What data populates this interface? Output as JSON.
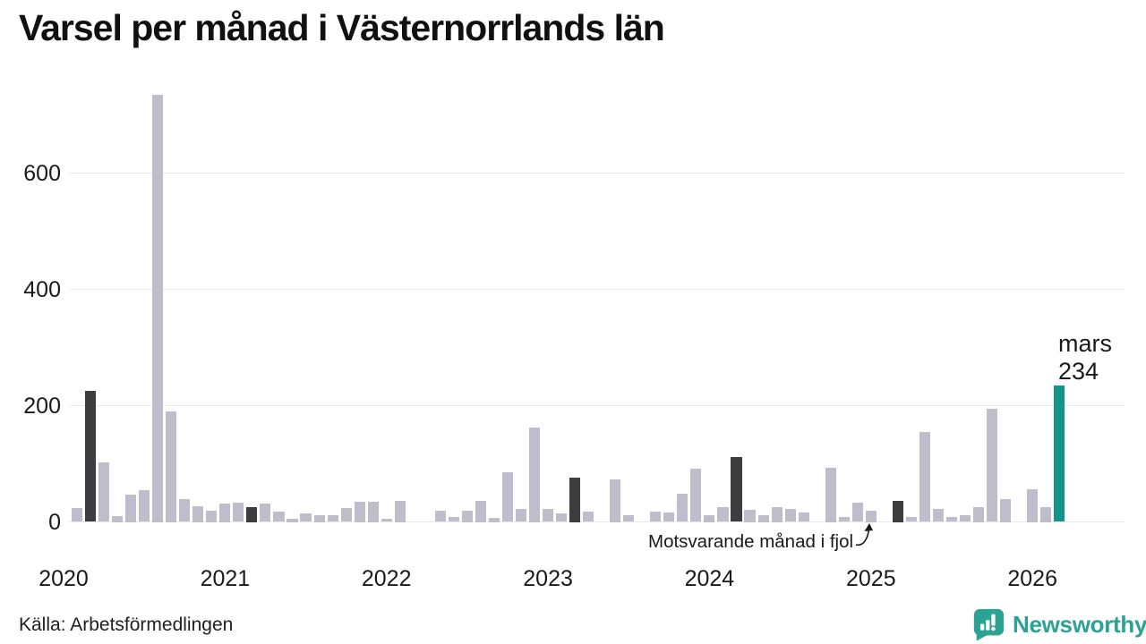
{
  "header": {
    "title": "Varsel per månad i Västernorrlands län"
  },
  "annotation": {
    "label": "Motsvarande månad i fjol",
    "points_to": "2025-03"
  },
  "highlight": {
    "month_label": "mars",
    "value_label": "234"
  },
  "footer": {
    "source": "Källa: Arbetsförmedlingen",
    "brand": "Newsworthy"
  },
  "colors": {
    "bar_default": "#bfbccb",
    "bar_dark": "#3d3c3f",
    "bar_accent": "#14948a",
    "grid": "#e7e7ee",
    "text": "#1a1a1a",
    "brand_teal": "#2ba293"
  },
  "chart_data": {
    "type": "bar",
    "title": "Varsel per månad i Västernorrlands län",
    "xlabel": "",
    "ylabel": "",
    "x_tick_labels": [
      "2020",
      "2021",
      "2022",
      "2023",
      "2024",
      "2025",
      "2026"
    ],
    "y_ticks": [
      0,
      200,
      400,
      600
    ],
    "ylim": [
      0,
      740
    ],
    "grid": "horizontal",
    "legend": "none",
    "highlighted_last_point": {
      "month": "2026-03",
      "label": "mars",
      "value": 234
    },
    "months": [
      {
        "m": "2020-01",
        "v": 0
      },
      {
        "m": "2020-02",
        "v": 24
      },
      {
        "m": "2020-03",
        "v": 226,
        "k": "dark"
      },
      {
        "m": "2020-04",
        "v": 102
      },
      {
        "m": "2020-05",
        "v": 10
      },
      {
        "m": "2020-06",
        "v": 47
      },
      {
        "m": "2020-07",
        "v": 54
      },
      {
        "m": "2020-08",
        "v": 735
      },
      {
        "m": "2020-09",
        "v": 190
      },
      {
        "m": "2020-10",
        "v": 39
      },
      {
        "m": "2020-11",
        "v": 27
      },
      {
        "m": "2020-12",
        "v": 20
      },
      {
        "m": "2021-01",
        "v": 31
      },
      {
        "m": "2021-02",
        "v": 33
      },
      {
        "m": "2021-03",
        "v": 25,
        "k": "dark"
      },
      {
        "m": "2021-04",
        "v": 32
      },
      {
        "m": "2021-05",
        "v": 18
      },
      {
        "m": "2021-06",
        "v": 5
      },
      {
        "m": "2021-07",
        "v": 14
      },
      {
        "m": "2021-08",
        "v": 11
      },
      {
        "m": "2021-09",
        "v": 12
      },
      {
        "m": "2021-10",
        "v": 24
      },
      {
        "m": "2021-11",
        "v": 35
      },
      {
        "m": "2021-12",
        "v": 35
      },
      {
        "m": "2022-01",
        "v": 6
      },
      {
        "m": "2022-02",
        "v": 37
      },
      {
        "m": "2022-03",
        "v": 0,
        "k": "dark"
      },
      {
        "m": "2022-04",
        "v": 0
      },
      {
        "m": "2022-05",
        "v": 19
      },
      {
        "m": "2022-06",
        "v": 9
      },
      {
        "m": "2022-07",
        "v": 20
      },
      {
        "m": "2022-08",
        "v": 37
      },
      {
        "m": "2022-09",
        "v": 7
      },
      {
        "m": "2022-10",
        "v": 86
      },
      {
        "m": "2022-11",
        "v": 22
      },
      {
        "m": "2022-12",
        "v": 163
      },
      {
        "m": "2023-01",
        "v": 22
      },
      {
        "m": "2023-02",
        "v": 14
      },
      {
        "m": "2023-03",
        "v": 77,
        "k": "dark"
      },
      {
        "m": "2023-04",
        "v": 18
      },
      {
        "m": "2023-05",
        "v": 0
      },
      {
        "m": "2023-06",
        "v": 73
      },
      {
        "m": "2023-07",
        "v": 12
      },
      {
        "m": "2023-08",
        "v": 0
      },
      {
        "m": "2023-09",
        "v": 18
      },
      {
        "m": "2023-10",
        "v": 16
      },
      {
        "m": "2023-11",
        "v": 49
      },
      {
        "m": "2023-12",
        "v": 92
      },
      {
        "m": "2024-01",
        "v": 11
      },
      {
        "m": "2024-02",
        "v": 26
      },
      {
        "m": "2024-03",
        "v": 112,
        "k": "dark"
      },
      {
        "m": "2024-04",
        "v": 21
      },
      {
        "m": "2024-05",
        "v": 11
      },
      {
        "m": "2024-06",
        "v": 25
      },
      {
        "m": "2024-07",
        "v": 22
      },
      {
        "m": "2024-08",
        "v": 16
      },
      {
        "m": "2024-09",
        "v": 0
      },
      {
        "m": "2024-10",
        "v": 93
      },
      {
        "m": "2024-11",
        "v": 8
      },
      {
        "m": "2024-12",
        "v": 33
      },
      {
        "m": "2025-01",
        "v": 20
      },
      {
        "m": "2025-02",
        "v": 0
      },
      {
        "m": "2025-03",
        "v": 37,
        "k": "dark"
      },
      {
        "m": "2025-04",
        "v": 8
      },
      {
        "m": "2025-05",
        "v": 154
      },
      {
        "m": "2025-06",
        "v": 22
      },
      {
        "m": "2025-07",
        "v": 9
      },
      {
        "m": "2025-08",
        "v": 12
      },
      {
        "m": "2025-09",
        "v": 25
      },
      {
        "m": "2025-10",
        "v": 194
      },
      {
        "m": "2025-11",
        "v": 40
      },
      {
        "m": "2025-12",
        "v": 0
      },
      {
        "m": "2026-01",
        "v": 57
      },
      {
        "m": "2026-02",
        "v": 25
      },
      {
        "m": "2026-03",
        "v": 234,
        "k": "accent"
      }
    ]
  }
}
